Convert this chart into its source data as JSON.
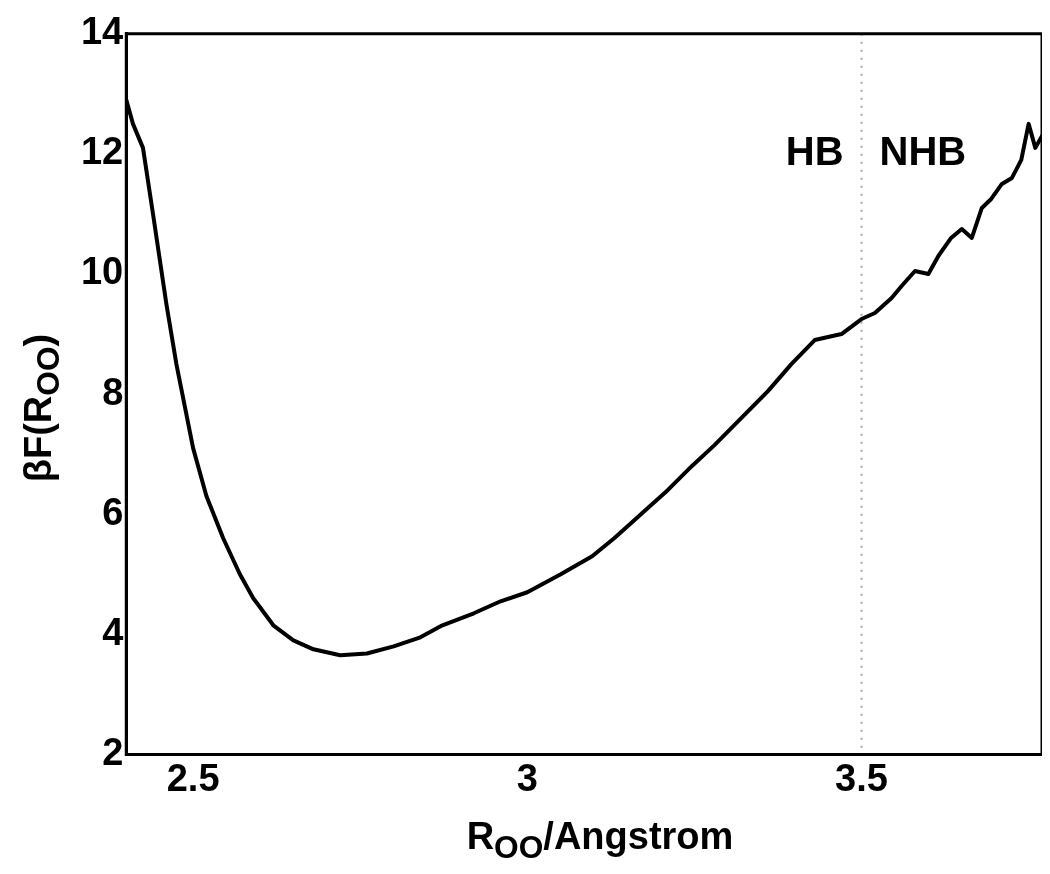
{
  "chart_data": {
    "type": "line",
    "xlabel": "R$_{OO}$/Angstrom",
    "ylabel": "βF(R$_{OO}$)",
    "xlim": [
      2.4,
      3.77
    ],
    "ylim": [
      2,
      14
    ],
    "xticks": [
      2.5,
      3,
      3.5
    ],
    "yticks": [
      2,
      4,
      6,
      8,
      10,
      12,
      14
    ],
    "grid": false,
    "marker": "none",
    "line_style": "solid",
    "legend": false,
    "series": [
      {
        "color": "#000000",
        "x": [
          2.4,
          2.41,
          2.425,
          2.44,
          2.448,
          2.46,
          2.475,
          2.5,
          2.52,
          2.545,
          2.57,
          2.59,
          2.62,
          2.65,
          2.68,
          2.72,
          2.76,
          2.8,
          2.84,
          2.873,
          2.92,
          2.96,
          3.0,
          3.05,
          3.097,
          3.13,
          3.17,
          3.21,
          3.246,
          3.28,
          3.32,
          3.36,
          3.395,
          3.43,
          3.47,
          3.5,
          3.52,
          3.545,
          3.56,
          3.58,
          3.6,
          3.615,
          3.634,
          3.65,
          3.665,
          3.68,
          3.694,
          3.71,
          3.725,
          3.739,
          3.75,
          3.76,
          3.77
        ],
        "values": [
          12.9,
          12.5,
          12.1,
          11.0,
          10.4,
          9.5,
          8.5,
          7.1,
          6.3,
          5.6,
          5.0,
          4.6,
          4.15,
          3.9,
          3.75,
          3.65,
          3.68,
          3.8,
          3.95,
          4.15,
          4.35,
          4.55,
          4.7,
          5.0,
          5.3,
          5.6,
          6.0,
          6.4,
          6.8,
          7.15,
          7.6,
          8.05,
          8.5,
          8.9,
          9.0,
          9.25,
          9.35,
          9.6,
          9.8,
          10.05,
          10.0,
          10.3,
          10.6,
          10.75,
          10.6,
          11.1,
          11.25,
          11.5,
          11.6,
          11.9,
          12.5,
          12.1,
          12.3
        ]
      }
    ],
    "ref_lines": [
      {
        "axis": "x",
        "value": 3.5,
        "color": "#aaaaaa",
        "line_style": "dotted"
      }
    ],
    "annotations": [
      "HB",
      "NHB"
    ]
  }
}
